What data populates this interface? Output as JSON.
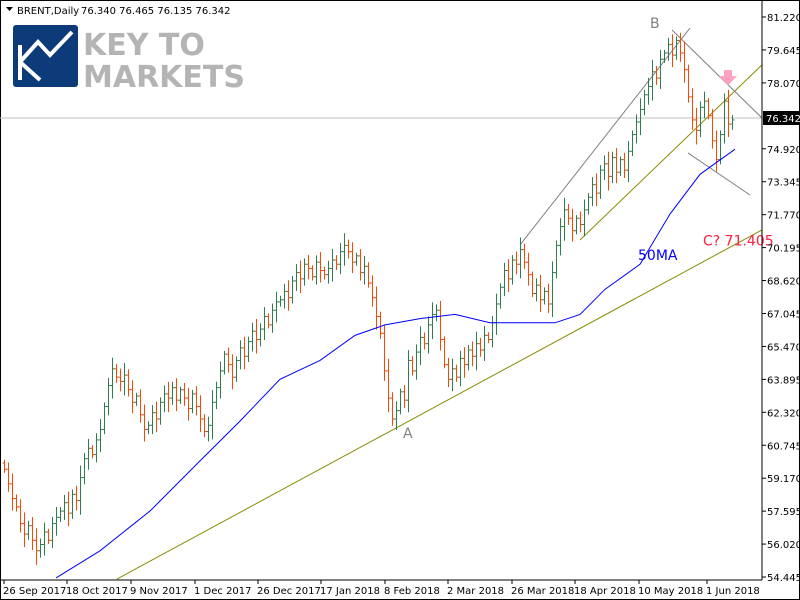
{
  "header": {
    "symbol": "BRENT,Daily",
    "ohlc": "76.340 76.465 76.135 76.342"
  },
  "logo": {
    "text_line1": "KEY TO",
    "text_line2": "MARKETS"
  },
  "colors": {
    "up_bar": "#2e7d4f",
    "down_bar": "#ff4500",
    "ma": "#0000ff",
    "trend": "#8b8b00",
    "channel": "#808080",
    "annotation_red": "#ff2040",
    "arrow": "#ffa0c0",
    "logo_blue": "#0d3a78",
    "logo_gray": "#b4b4b4"
  },
  "chart_data": {
    "type": "ohlc",
    "title": "BRENT,Daily",
    "ylim": [
      54.445,
      81.22
    ],
    "y_ticks": [
      "81.220",
      "79.645",
      "78.070",
      "74.920",
      "73.345",
      "71.770",
      "70.195",
      "68.620",
      "67.045",
      "65.470",
      "63.895",
      "62.320",
      "60.745",
      "59.170",
      "57.595",
      "56.020",
      "54.445"
    ],
    "x_ticks": [
      "26 Sep 2017",
      "18 Oct 2017",
      "9 Nov 2017",
      "1 Dec 2017",
      "26 Dec 2017",
      "17 Jan 2018",
      "8 Feb 2018",
      "2 Mar 2018",
      "26 Mar 2018",
      "18 Apr 2018",
      "10 May 2018",
      "1 Jun 2018"
    ],
    "current_price": "76.342",
    "closes": [
      59.6,
      58.9,
      58.2,
      57.8,
      57.0,
      56.5,
      56.9,
      56.2,
      55.7,
      56.0,
      56.6,
      56.2,
      57.0,
      57.3,
      57.6,
      58.0,
      57.5,
      58.4,
      58.1,
      59.2,
      60.1,
      60.6,
      60.3,
      61.0,
      61.5,
      62.6,
      63.6,
      64.4,
      64.0,
      63.8,
      64.1,
      63.4,
      62.8,
      63.1,
      62.2,
      61.5,
      61.7,
      62.3,
      62.0,
      62.8,
      63.2,
      63.0,
      63.5,
      62.9,
      63.4,
      63.0,
      62.5,
      63.2,
      62.6,
      62.0,
      61.4,
      61.7,
      62.8,
      63.5,
      64.3,
      65.1,
      64.6,
      64.0,
      64.8,
      65.4,
      65.0,
      65.7,
      66.2,
      65.8,
      66.3,
      66.9,
      66.5,
      67.2,
      67.6,
      67.7,
      68.1,
      67.8,
      68.6,
      69.0,
      68.7,
      69.4,
      69.2,
      68.8,
      69.5,
      69.1,
      68.9,
      69.2,
      69.6,
      69.4,
      70.0,
      70.3,
      70.0,
      69.5,
      69.8,
      69.0,
      69.3,
      68.5,
      67.8,
      66.9,
      66.1,
      64.3,
      63.0,
      62.0,
      62.4,
      63.3,
      62.9,
      64.8,
      64.3,
      65.2,
      65.9,
      65.6,
      66.5,
      67.0,
      67.2,
      65.8,
      64.6,
      63.9,
      64.4,
      64.0,
      64.9,
      64.6,
      65.3,
      65.0,
      65.6,
      65.3,
      66.0,
      65.8,
      66.6,
      67.5,
      68.3,
      69.1,
      68.7,
      69.6,
      69.4,
      70.1,
      69.5,
      68.9,
      68.0,
      68.4,
      67.7,
      68.1,
      67.5,
      69.0,
      70.3,
      71.2,
      72.0,
      71.6,
      71.0,
      71.6,
      71.3,
      72.0,
      72.6,
      73.2,
      72.8,
      73.9,
      74.2,
      73.6,
      74.5,
      73.8,
      74.4,
      73.9,
      74.8,
      75.6,
      76.2,
      76.8,
      77.5,
      77.9,
      78.6,
      78.3,
      79.2,
      79.5,
      79.9,
      79.4,
      80.1,
      79.5,
      78.7,
      77.4,
      76.3,
      75.8,
      76.9,
      77.2,
      76.5,
      75.3,
      74.4,
      75.6,
      77.2,
      76.1,
      76.3
    ],
    "ma50": {
      "label": "50MA",
      "points": [
        [
          13,
          54.4
        ],
        [
          24,
          55.7
        ],
        [
          36.5,
          57.6
        ],
        [
          49,
          60.0
        ],
        [
          59,
          61.9
        ],
        [
          69,
          63.9
        ],
        [
          79,
          64.8
        ],
        [
          87.75,
          66.0
        ],
        [
          95.25,
          66.5
        ],
        [
          104,
          66.8
        ],
        [
          112.75,
          67.0
        ],
        [
          121.5,
          66.6
        ],
        [
          129,
          66.6
        ],
        [
          137.75,
          66.6
        ],
        [
          144,
          67.0
        ],
        [
          150.25,
          68.2
        ],
        [
          159,
          69.4
        ],
        [
          166.5,
          71.8
        ],
        [
          174,
          73.7
        ],
        [
          182.75,
          74.9
        ]
      ]
    },
    "trendlines": [
      {
        "name": "long-support",
        "color": "trend",
        "from": [
          28.25,
          54.35
        ],
        "to": [
          189.5,
          71.04
        ]
      },
      {
        "name": "upper-channel",
        "color": "trend",
        "from": [
          144,
          70.56
        ],
        "to": [
          189.5,
          78.93
        ]
      },
      {
        "name": "rising-channel",
        "color": "channel",
        "from": [
          129,
          70.32
        ],
        "to": [
          171.5,
          80.69
        ]
      },
      {
        "name": "falling-upper",
        "color": "channel",
        "from": [
          167,
          80.6
        ],
        "to": [
          189.5,
          76.39
        ]
      },
      {
        "name": "falling-lower",
        "color": "channel",
        "from": [
          171,
          74.72
        ],
        "to": [
          186.5,
          72.71
        ]
      }
    ],
    "annotations": [
      {
        "text": "B",
        "at": [
          161.5,
          80.7
        ],
        "color": "channel"
      },
      {
        "text": "A",
        "at": [
          99.75,
          61.1
        ],
        "color": "channel"
      },
      {
        "text": "C? 71.405",
        "at": [
          174.75,
          70.3
        ],
        "color": "annotation_red"
      },
      {
        "text": "50MA",
        "at": [
          158.5,
          69.6
        ],
        "color": "ma"
      }
    ],
    "signal_arrow": {
      "direction": "down",
      "at": [
        181,
        78.2
      ]
    }
  }
}
